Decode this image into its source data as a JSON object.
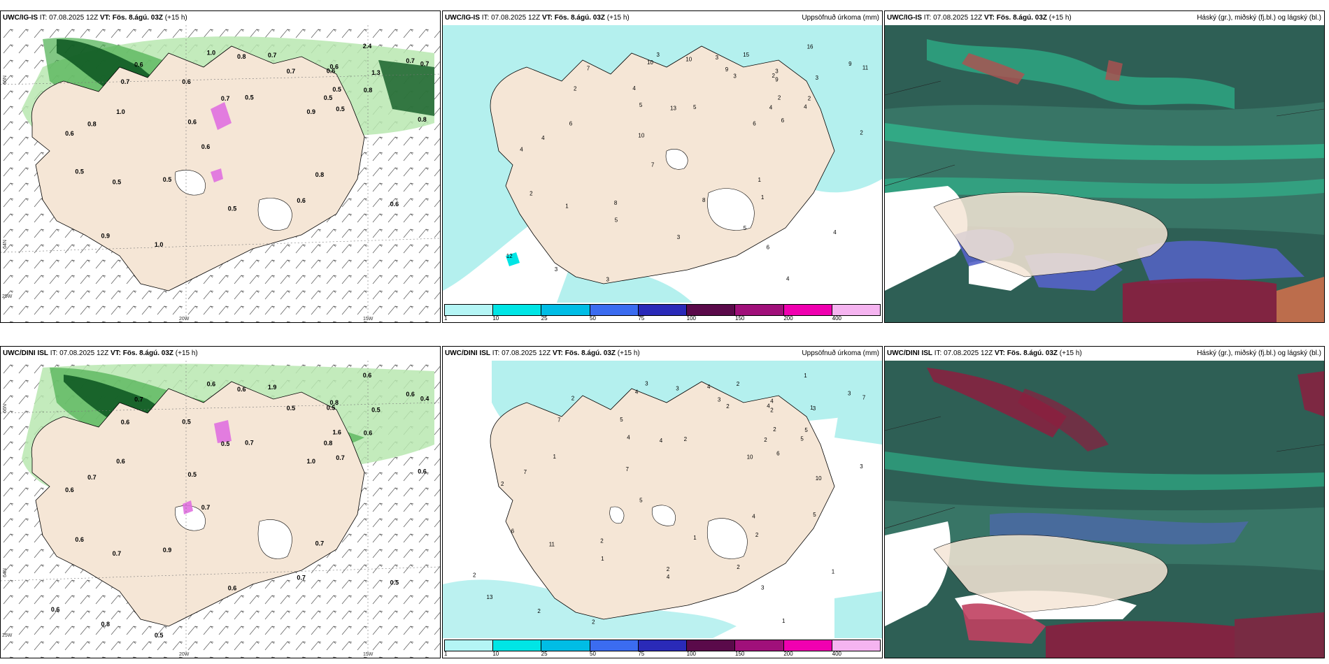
{
  "colors": {
    "land": "#f5e6d6",
    "precip_light": "#b4f0ee",
    "precip_mid": "#00e5e5",
    "green_light": "#b9e8b0",
    "green_mid": "#4caf50",
    "green_dark": "#0f5a23",
    "cloud_high": "#2e5f55",
    "cloud_mid": "#5563c8",
    "cloud_low": "#2ecc9a"
  },
  "panels": {
    "p1": {
      "model": "UWC/IG-IS",
      "it_label": "IT:",
      "it_value": "07.08.2025 12Z",
      "vt_label": "VT:",
      "vt_value": "Fös. 8.ágú. 03Z",
      "lead": "(+15 h)",
      "right_title": ""
    },
    "p2": {
      "model": "UWC/IG-IS",
      "it_label": "IT:",
      "it_value": "07.08.2025 12Z",
      "vt_label": "VT:",
      "vt_value": "Fös. 8.ágú. 03Z",
      "lead": "(+15 h)",
      "right_title": "Uppsöfnuð úrkoma (mm)"
    },
    "p3": {
      "model": "UWC/IG-IS",
      "it_label": "IT:",
      "it_value": "07.08.2025 12Z",
      "vt_label": "VT:",
      "vt_value": "Fös. 8.ágú. 03Z",
      "lead": "(+15 h)",
      "right_title": "Háský (gr.), miðský (fj.bl.) og lágský (bl.)"
    },
    "p4": {
      "model": "UWC/DINI ISL",
      "it_label": "IT:",
      "it_value": "07.08.2025 12Z",
      "vt_label": "VT:",
      "vt_value": "Fös. 8.ágú. 03Z",
      "lead": "(+15 h)",
      "right_title": ""
    },
    "p5": {
      "model": "UWC/DINI ISL",
      "it_label": "IT:",
      "it_value": "07.08.2025 12Z",
      "vt_label": "VT:",
      "vt_value": "Fös. 8.ágú. 03Z",
      "lead": "(+15 h)",
      "right_title": "Uppsöfnuð úrkoma (mm)"
    },
    "p6": {
      "model": "UWC/DINI ISL",
      "it_label": "IT:",
      "it_value": "07.08.2025 12Z",
      "vt_label": "VT:",
      "vt_value": "Fös. 8.ágú. 03Z",
      "lead": "(+15 h)",
      "right_title": "Háský (gr.), miðský (fj.bl.) og lágský (bl.)"
    }
  },
  "axes": {
    "lat_top": "66N",
    "lat_bottom": "64N",
    "lon_left": "20W",
    "lon_right": "15W",
    "lon_edge": "25W"
  },
  "colorbar": {
    "ticks": [
      "1",
      "10",
      "25",
      "50",
      "75",
      "100",
      "150",
      "200",
      "400"
    ],
    "colors": [
      "#b4f5f5",
      "#00e5e5",
      "#00bde5",
      "#3b6cf0",
      "#2a2ab8",
      "#5a0a4a",
      "#a0107a",
      "#f000b0",
      "#f5b4f0"
    ]
  },
  "values": {
    "p1": [
      "0.5",
      "0.5",
      "0.5",
      "1.0",
      "0.6",
      "0.6",
      "1.3",
      "0.9",
      "0.7",
      "0.6",
      "0.5",
      "0.9",
      "0.8",
      "0.7",
      "0.8",
      "0.6",
      "0.7",
      "0.6",
      "0.7",
      "0.6",
      "0.5",
      "0.8",
      "0.5",
      "0.7",
      "0.6",
      "0.7",
      "1.0",
      "0.8",
      "0.6",
      "0.5",
      "0.5",
      "2.4",
      "0.8",
      "1.0",
      "0.6"
    ],
    "p2": [
      "2",
      "3",
      "5",
      "6",
      "5",
      "4",
      "3",
      "3",
      "11",
      "10",
      "8",
      "6",
      "4",
      "13",
      "2",
      "7",
      "9",
      "3",
      "3",
      "4",
      "6",
      "2",
      "1",
      "2",
      "4",
      "3",
      "3",
      "1",
      "2",
      "2",
      "4",
      "16",
      "10",
      "3",
      "7",
      "12",
      "9",
      "5",
      "15",
      "10",
      "5",
      "6",
      "9",
      "4",
      "8",
      "1",
      "4"
    ],
    "p4": [
      "0.6",
      "0.6",
      "0.7",
      "0.6",
      "0.7",
      "0.5",
      "0.5",
      "0.8",
      "0.4",
      "0.5",
      "0.9",
      "1.0",
      "0.7",
      "0.5",
      "0.6",
      "0.7",
      "0.6",
      "0.8",
      "1.9",
      "0.6",
      "0.7",
      "0.6",
      "0.7",
      "0.6",
      "0.5",
      "0.5",
      "0.6",
      "0.7",
      "0.5",
      "1.6",
      "0.8",
      "0.6",
      "0.6",
      "0.5",
      "0.7",
      "0.6"
    ],
    "p5": [
      "6",
      "4",
      "2",
      "1",
      "2",
      "5",
      "3",
      "2",
      "7",
      "7",
      "2",
      "10",
      "7",
      "4",
      "5",
      "5",
      "3",
      "4",
      "4",
      "2",
      "6",
      "3",
      "11",
      "7",
      "1",
      "2",
      "3",
      "2",
      "4",
      "2",
      "2",
      "1",
      "3",
      "2",
      "2",
      "13",
      "2",
      "1",
      "2",
      "4",
      "4",
      "3",
      "3",
      "1",
      "1",
      "4",
      "5",
      "2",
      "2",
      "10",
      "5",
      "1"
    ]
  }
}
